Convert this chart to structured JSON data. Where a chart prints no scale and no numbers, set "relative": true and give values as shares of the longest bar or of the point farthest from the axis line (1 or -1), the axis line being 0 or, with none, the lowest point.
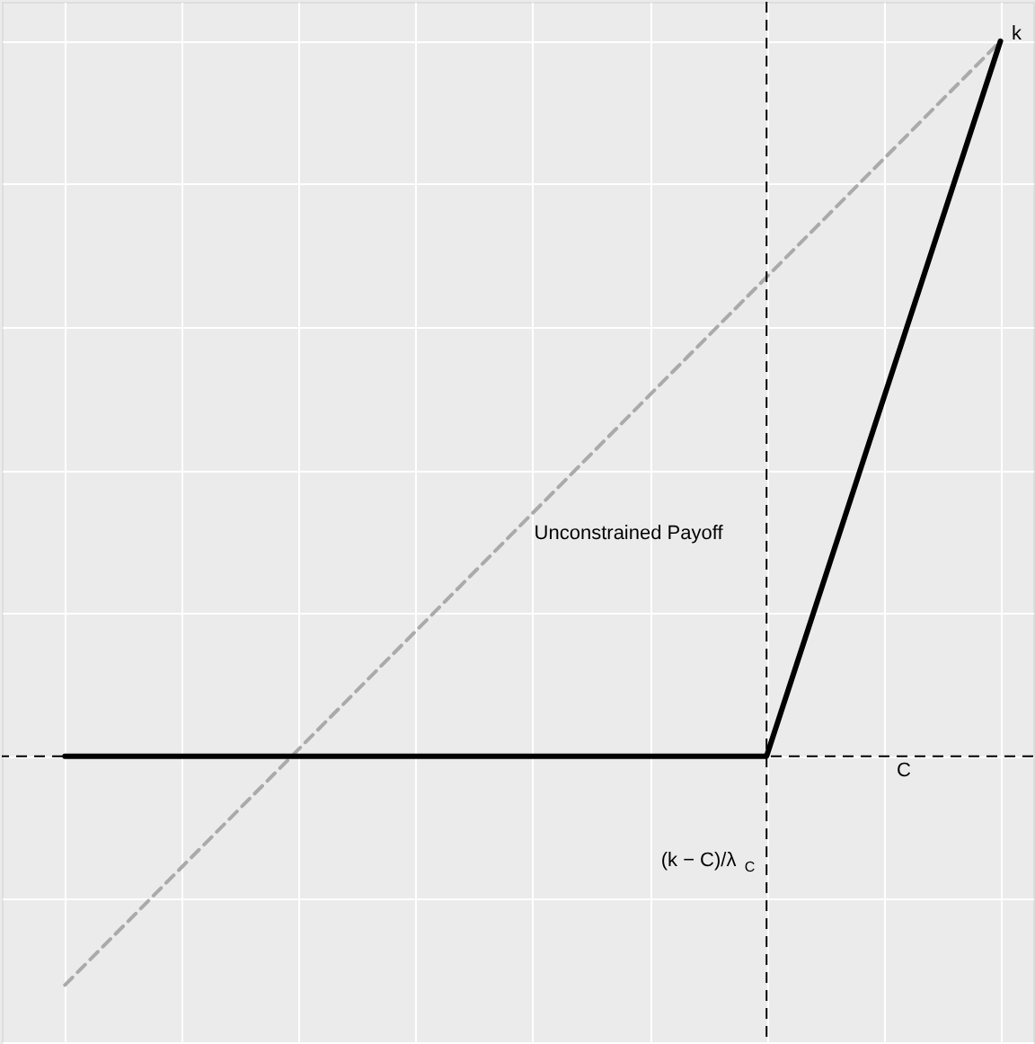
{
  "chart_data": {
    "type": "line",
    "relative": true,
    "categories": [
      null,
      null,
      null,
      null,
      null
    ],
    "series": [
      {
        "color": "#aaaaaa",
        "line_style": "dashed",
        "values": [
          -0.32,
          0.01,
          0.34,
          0.67,
          1.0
        ]
      },
      {
        "color": "#000000",
        "line_style": "solid",
        "values": [
          0,
          0,
          0,
          0,
          1.0
        ]
      }
    ],
    "ref_lines": [
      {
        "axis": "y",
        "value": 0,
        "line_style": "dashed",
        "color": "#000000"
      }
    ],
    "annotations": [
      "k",
      "Unconstrained Payoff",
      "C",
      "(k − C)/λ$_{C}$"
    ],
    "grid": true,
    "tick_labels": false,
    "legend": false,
    "marker": "none"
  }
}
